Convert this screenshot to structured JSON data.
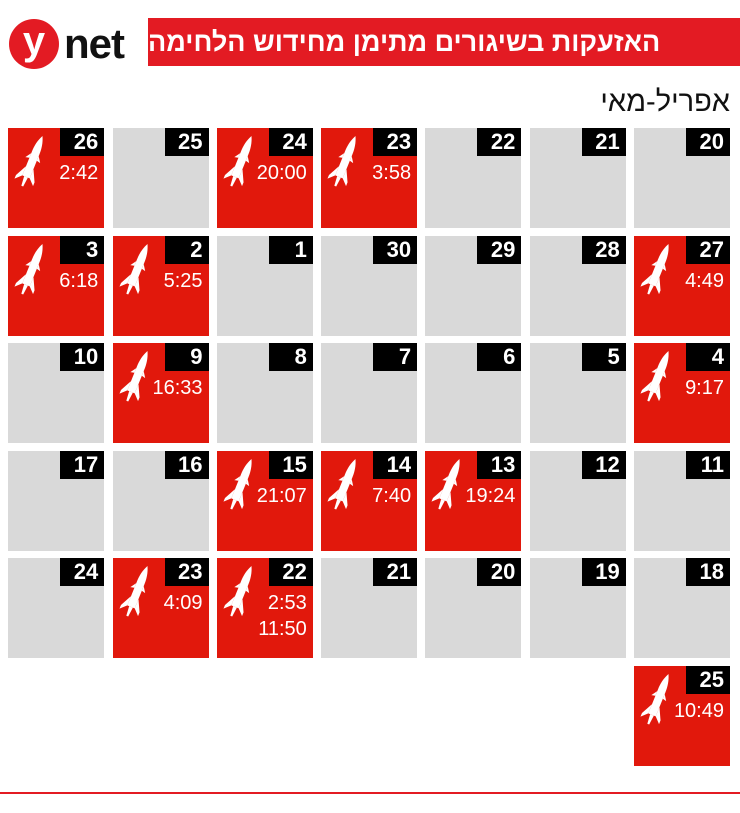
{
  "logo": {
    "mark": "y",
    "text": "net"
  },
  "header": {
    "title": "האזעקות בשיגורים מתימן מחידוש הלחימה"
  },
  "subtitle": "אפריל-מאי",
  "colors": {
    "alert": "#e1180c",
    "quiet": "#d9d9d9",
    "brand": "#e31b23",
    "day_badge": "#000000"
  },
  "calendar": {
    "rows": [
      [
        {
          "day": "20",
          "times": []
        },
        {
          "day": "21",
          "times": []
        },
        {
          "day": "22",
          "times": []
        },
        {
          "day": "23",
          "times": [
            "3:58"
          ]
        },
        {
          "day": "24",
          "times": [
            "20:00"
          ]
        },
        {
          "day": "25",
          "times": []
        },
        {
          "day": "26",
          "times": [
            "2:42"
          ]
        }
      ],
      [
        {
          "day": "27",
          "times": [
            "4:49"
          ]
        },
        {
          "day": "28",
          "times": []
        },
        {
          "day": "29",
          "times": []
        },
        {
          "day": "30",
          "times": []
        },
        {
          "day": "1",
          "times": []
        },
        {
          "day": "2",
          "times": [
            "5:25"
          ]
        },
        {
          "day": "3",
          "times": [
            "6:18"
          ]
        }
      ],
      [
        {
          "day": "4",
          "times": [
            "9:17"
          ]
        },
        {
          "day": "5",
          "times": []
        },
        {
          "day": "6",
          "times": []
        },
        {
          "day": "7",
          "times": []
        },
        {
          "day": "8",
          "times": []
        },
        {
          "day": "9",
          "times": [
            "16:33"
          ]
        },
        {
          "day": "10",
          "times": []
        }
      ],
      [
        {
          "day": "11",
          "times": []
        },
        {
          "day": "12",
          "times": []
        },
        {
          "day": "13",
          "times": [
            "19:24"
          ]
        },
        {
          "day": "14",
          "times": [
            "7:40"
          ]
        },
        {
          "day": "15",
          "times": [
            "21:07"
          ]
        },
        {
          "day": "16",
          "times": []
        },
        {
          "day": "17",
          "times": []
        }
      ],
      [
        {
          "day": "18",
          "times": []
        },
        {
          "day": "19",
          "times": []
        },
        {
          "day": "20",
          "times": []
        },
        {
          "day": "21",
          "times": []
        },
        {
          "day": "22",
          "times": [
            "2:53",
            "11:50"
          ]
        },
        {
          "day": "23",
          "times": [
            "4:09"
          ]
        },
        {
          "day": "24",
          "times": []
        }
      ],
      [
        {
          "day": "25",
          "times": [
            "10:49"
          ]
        }
      ]
    ],
    "alert_icon": "rocket-icon"
  }
}
